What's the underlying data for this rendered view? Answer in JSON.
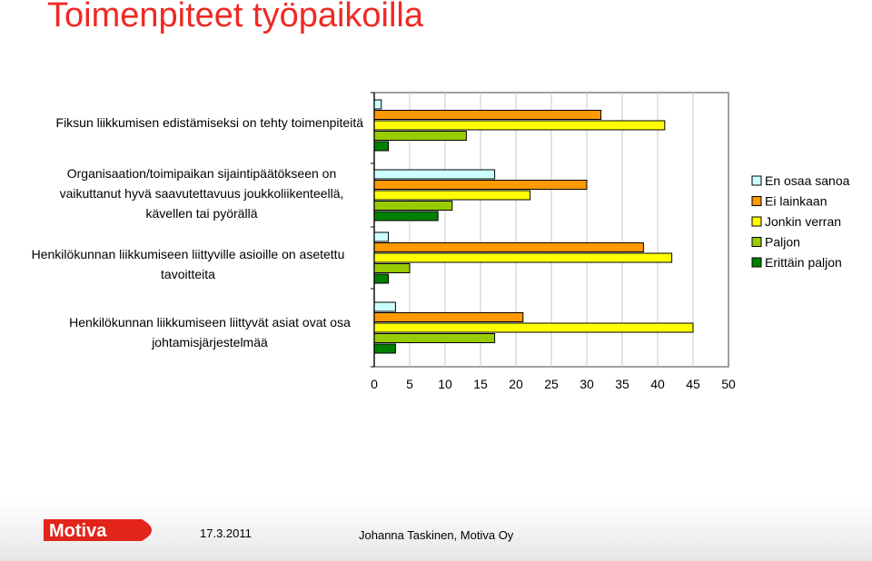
{
  "slide": {
    "title": "Toimenpiteet työpaikoilla",
    "date": "17.3.2011",
    "author": "Johanna Taskinen, Motiva Oy",
    "logo_text": "Motiva"
  },
  "colors": {
    "title": "#ee2a24",
    "logo_red": "#e3241b"
  },
  "chart_data": {
    "type": "bar",
    "orientation": "horizontal",
    "categories": [
      "Fiksun liikkumisen edistämiseksi on tehty toimenpiteitä",
      "Organisaation/toimipaikan sijaintipäätökseen on vaikuttanut hyvä saavutettavuus joukkoliikenteellä, kävellen tai pyörällä",
      "Henkilökunnan liikkumiseen liittyville asioille on asetettu tavoitteita",
      "Henkilökunnan liikkumiseen liittyvät asiat ovat osa johtamisjärjestelmää"
    ],
    "category_lines": [
      [
        "Fiksun liikkumisen edistämiseksi on tehty toimenpiteitä"
      ],
      [
        "Organisaation/toimipaikan sijaintipäätökseen on",
        "vaikuttanut hyvä saavutettavuus joukkoliikenteellä,",
        "kävellen tai pyörällä"
      ],
      [
        "Henkilökunnan liikkumiseen liittyville asioille on asetettu",
        "tavoitteita"
      ],
      [
        "Henkilökunnan liikkumiseen liittyvät asiat ovat osa",
        "johtamisjärjestelmää"
      ]
    ],
    "series": [
      {
        "name": "En osaa sanoa",
        "color": "#ccffff",
        "values": [
          1,
          17,
          2,
          3
        ]
      },
      {
        "name": "Ei lainkaan",
        "color": "#ff9900",
        "values": [
          32,
          30,
          38,
          21
        ]
      },
      {
        "name": "Jonkin verran",
        "color": "#ffff00",
        "values": [
          41,
          22,
          42,
          45
        ]
      },
      {
        "name": "Paljon",
        "color": "#99cc00",
        "values": [
          13,
          11,
          5,
          17
        ]
      },
      {
        "name": "Erittäin paljon",
        "color": "#008000",
        "values": [
          2,
          9,
          2,
          3
        ]
      }
    ],
    "xlim": [
      0,
      50
    ],
    "xticks": [
      "0",
      "5",
      "10",
      "15",
      "20",
      "25",
      "30",
      "35",
      "40",
      "45",
      "50"
    ],
    "grid": true,
    "legend_position": "right"
  }
}
